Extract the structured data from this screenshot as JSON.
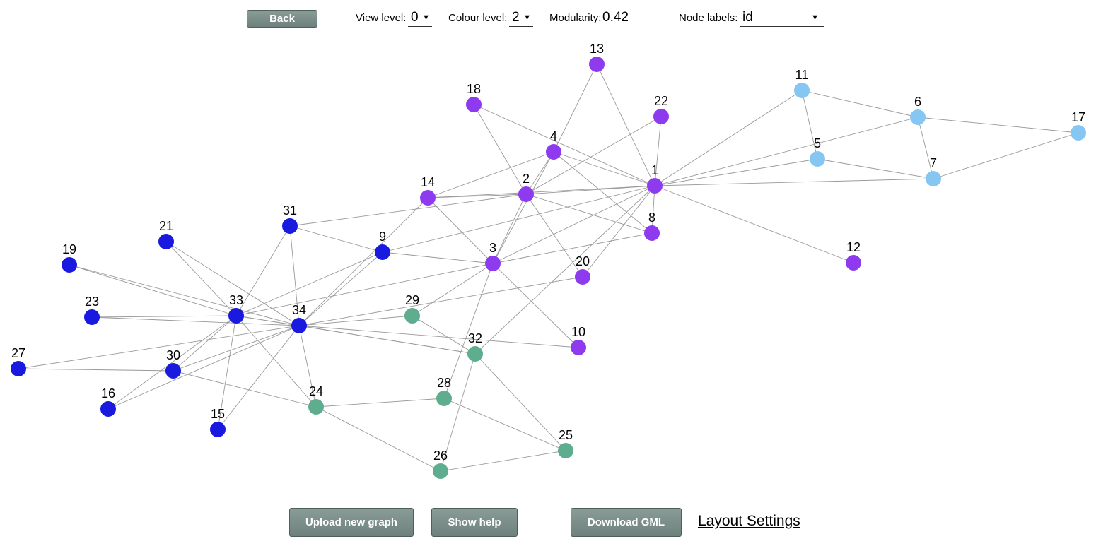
{
  "toolbar": {
    "back_label": "Back",
    "view_level_label": "View level:",
    "view_level_value": "0",
    "colour_level_label": "Colour level:",
    "colour_level_value": "2",
    "modularity_label": "Modularity:",
    "modularity_value": "0.42",
    "node_labels_label": "Node labels:",
    "node_labels_value": "id"
  },
  "footer": {
    "upload_label": "Upload new graph",
    "help_label": "Show help",
    "download_label": "Download GML",
    "layout_label": "Layout Settings"
  },
  "colors": {
    "purple": "#8e3bf0",
    "lightblue": "#85c7f2",
    "blue": "#1919df",
    "teal": "#5ead8f",
    "edge": "#999999"
  },
  "graph": {
    "nodes": [
      {
        "id": "1",
        "group": "purple"
      },
      {
        "id": "2",
        "group": "purple"
      },
      {
        "id": "3",
        "group": "purple"
      },
      {
        "id": "4",
        "group": "purple"
      },
      {
        "id": "5",
        "group": "lightblue"
      },
      {
        "id": "6",
        "group": "lightblue"
      },
      {
        "id": "7",
        "group": "lightblue"
      },
      {
        "id": "8",
        "group": "purple"
      },
      {
        "id": "9",
        "group": "blue"
      },
      {
        "id": "10",
        "group": "purple"
      },
      {
        "id": "11",
        "group": "lightblue"
      },
      {
        "id": "12",
        "group": "purple"
      },
      {
        "id": "13",
        "group": "purple"
      },
      {
        "id": "14",
        "group": "purple"
      },
      {
        "id": "15",
        "group": "blue"
      },
      {
        "id": "16",
        "group": "blue"
      },
      {
        "id": "17",
        "group": "lightblue"
      },
      {
        "id": "18",
        "group": "purple"
      },
      {
        "id": "19",
        "group": "blue"
      },
      {
        "id": "20",
        "group": "purple"
      },
      {
        "id": "21",
        "group": "blue"
      },
      {
        "id": "22",
        "group": "purple"
      },
      {
        "id": "23",
        "group": "blue"
      },
      {
        "id": "24",
        "group": "teal"
      },
      {
        "id": "25",
        "group": "teal"
      },
      {
        "id": "26",
        "group": "teal"
      },
      {
        "id": "27",
        "group": "blue"
      },
      {
        "id": "28",
        "group": "teal"
      },
      {
        "id": "29",
        "group": "teal"
      },
      {
        "id": "30",
        "group": "blue"
      },
      {
        "id": "31",
        "group": "blue"
      },
      {
        "id": "32",
        "group": "teal"
      },
      {
        "id": "33",
        "group": "blue"
      },
      {
        "id": "34",
        "group": "blue"
      }
    ],
    "edges": [
      [
        "1",
        "2"
      ],
      [
        "1",
        "3"
      ],
      [
        "1",
        "4"
      ],
      [
        "1",
        "5"
      ],
      [
        "1",
        "6"
      ],
      [
        "1",
        "7"
      ],
      [
        "1",
        "8"
      ],
      [
        "1",
        "9"
      ],
      [
        "1",
        "11"
      ],
      [
        "1",
        "12"
      ],
      [
        "1",
        "13"
      ],
      [
        "1",
        "14"
      ],
      [
        "1",
        "18"
      ],
      [
        "1",
        "20"
      ],
      [
        "1",
        "22"
      ],
      [
        "1",
        "32"
      ],
      [
        "2",
        "3"
      ],
      [
        "2",
        "4"
      ],
      [
        "2",
        "8"
      ],
      [
        "2",
        "14"
      ],
      [
        "2",
        "18"
      ],
      [
        "2",
        "20"
      ],
      [
        "2",
        "22"
      ],
      [
        "2",
        "31"
      ],
      [
        "3",
        "4"
      ],
      [
        "3",
        "8"
      ],
      [
        "3",
        "9"
      ],
      [
        "3",
        "10"
      ],
      [
        "3",
        "14"
      ],
      [
        "3",
        "28"
      ],
      [
        "3",
        "29"
      ],
      [
        "3",
        "33"
      ],
      [
        "4",
        "8"
      ],
      [
        "4",
        "13"
      ],
      [
        "4",
        "14"
      ],
      [
        "5",
        "7"
      ],
      [
        "5",
        "11"
      ],
      [
        "6",
        "7"
      ],
      [
        "6",
        "11"
      ],
      [
        "6",
        "17"
      ],
      [
        "7",
        "17"
      ],
      [
        "9",
        "31"
      ],
      [
        "9",
        "33"
      ],
      [
        "9",
        "34"
      ],
      [
        "10",
        "34"
      ],
      [
        "14",
        "34"
      ],
      [
        "15",
        "33"
      ],
      [
        "15",
        "34"
      ],
      [
        "16",
        "33"
      ],
      [
        "16",
        "34"
      ],
      [
        "19",
        "33"
      ],
      [
        "19",
        "34"
      ],
      [
        "20",
        "34"
      ],
      [
        "21",
        "33"
      ],
      [
        "21",
        "34"
      ],
      [
        "23",
        "33"
      ],
      [
        "23",
        "34"
      ],
      [
        "24",
        "26"
      ],
      [
        "24",
        "28"
      ],
      [
        "24",
        "30"
      ],
      [
        "24",
        "33"
      ],
      [
        "24",
        "34"
      ],
      [
        "25",
        "26"
      ],
      [
        "25",
        "28"
      ],
      [
        "25",
        "32"
      ],
      [
        "26",
        "32"
      ],
      [
        "27",
        "30"
      ],
      [
        "27",
        "34"
      ],
      [
        "29",
        "32"
      ],
      [
        "29",
        "34"
      ],
      [
        "30",
        "33"
      ],
      [
        "30",
        "34"
      ],
      [
        "31",
        "33"
      ],
      [
        "31",
        "34"
      ],
      [
        "32",
        "33"
      ],
      [
        "32",
        "34"
      ],
      [
        "33",
        "34"
      ]
    ]
  }
}
